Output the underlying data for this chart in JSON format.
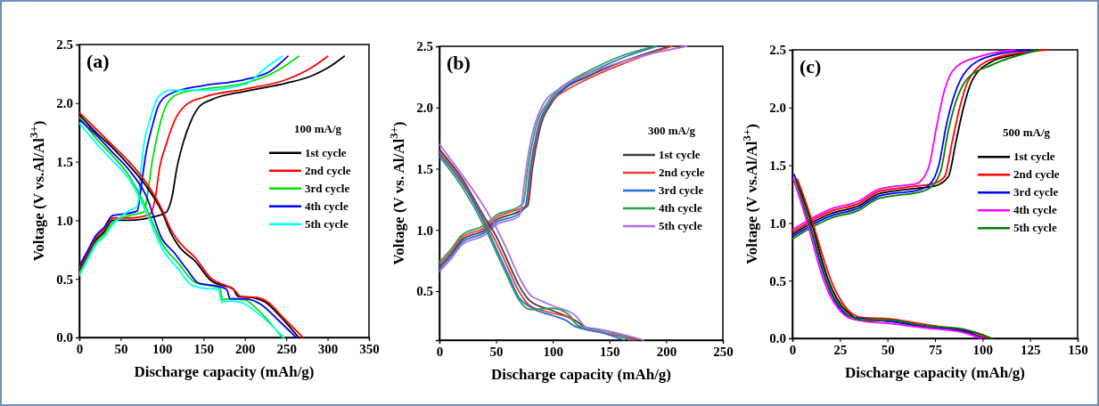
{
  "chart_data": [
    {
      "type": "line",
      "title": "(a)",
      "xlabel": "Discharge capacity (mAh/g)",
      "ylabel": "Voltage (V vs.Al/Al$^{3+}$)",
      "legend_title": "100 mA/g",
      "legend": "right",
      "xlim": [
        0,
        350
      ],
      "ylim": [
        0,
        2.5
      ],
      "xticks": [
        0,
        50,
        100,
        150,
        200,
        250,
        300,
        350
      ],
      "yticks": [
        {
          "value": 0,
          "label": "0.0"
        },
        {
          "value": 0.5,
          "label": "0.5"
        },
        {
          "value": 1,
          "label": "1.0"
        },
        {
          "value": 1.5,
          "label": "1.5"
        },
        {
          "value": 2,
          "label": "2.0"
        },
        {
          "value": 2.5,
          "label": "2.5"
        }
      ],
      "series": [
        {
          "name": "1st cycle",
          "color": "#000000",
          "x": [
            0,
            10,
            20,
            30,
            40,
            60,
            90,
            105,
            112,
            118,
            125,
            135,
            145,
            160,
            200,
            250,
            280,
            300,
            320
          ],
          "values": [
            0.57,
            0.7,
            0.83,
            0.9,
            1.0,
            1.0,
            1.03,
            1.07,
            1.2,
            1.45,
            1.65,
            1.85,
            1.97,
            2.03,
            2.1,
            2.17,
            2.23,
            2.3,
            2.4
          ]
        },
        {
          "name": "2nd cycle",
          "color": "#ff0000",
          "x": [
            0,
            10,
            20,
            30,
            40,
            60,
            85,
            92,
            97,
            105,
            115,
            128,
            150,
            200,
            250,
            280,
            300
          ],
          "values": [
            0.59,
            0.72,
            0.85,
            0.92,
            1.02,
            1.02,
            1.05,
            1.2,
            1.45,
            1.65,
            1.85,
            1.98,
            2.05,
            2.12,
            2.2,
            2.3,
            2.4
          ]
        },
        {
          "name": "3rd cycle",
          "color": "#00e000",
          "x": [
            0,
            10,
            20,
            30,
            40,
            60,
            78,
            83,
            88,
            95,
            105,
            120,
            150,
            200,
            240,
            265
          ],
          "values": [
            0.55,
            0.68,
            0.81,
            0.88,
            0.98,
            1.04,
            1.07,
            1.25,
            1.5,
            1.75,
            1.98,
            2.08,
            2.12,
            2.17,
            2.28,
            2.4
          ]
        },
        {
          "name": "4th cycle",
          "color": "#0000ff",
          "x": [
            0,
            10,
            20,
            30,
            40,
            60,
            70,
            75,
            80,
            88,
            97,
            110,
            150,
            200,
            230,
            252
          ],
          "values": [
            0.61,
            0.74,
            0.87,
            0.94,
            1.04,
            1.06,
            1.08,
            1.3,
            1.55,
            1.8,
            2.0,
            2.08,
            2.15,
            2.2,
            2.27,
            2.4
          ]
        },
        {
          "name": "5th cycle",
          "color": "#00ffff",
          "x": [
            0,
            10,
            20,
            30,
            40,
            60,
            70,
            74,
            78,
            85,
            95,
            110,
            150,
            200,
            225,
            245
          ],
          "values": [
            0.53,
            0.66,
            0.79,
            0.86,
            0.96,
            1.08,
            1.12,
            1.4,
            1.65,
            1.85,
            2.05,
            2.11,
            2.11,
            2.16,
            2.3,
            2.4
          ]
        },
        {
          "color": "#000000",
          "x": [
            0,
            20,
            40,
            60,
            80,
            100,
            110,
            120,
            140,
            160,
            175,
            185,
            192,
            210,
            225,
            240,
            265
          ],
          "values": [
            1.9,
            1.75,
            1.62,
            1.47,
            1.3,
            1.07,
            0.9,
            0.78,
            0.65,
            0.48,
            0.44,
            0.42,
            0.35,
            0.34,
            0.3,
            0.2,
            0.0
          ]
        },
        {
          "color": "#ff0000",
          "x": [
            0,
            20,
            40,
            60,
            80,
            100,
            110,
            120,
            140,
            160,
            178,
            188,
            195,
            215,
            228,
            245,
            270
          ],
          "values": [
            1.92,
            1.78,
            1.64,
            1.5,
            1.33,
            1.09,
            0.93,
            0.82,
            0.68,
            0.5,
            0.44,
            0.4,
            0.35,
            0.34,
            0.3,
            0.18,
            0.0
          ]
        },
        {
          "color": "#00e000",
          "x": [
            0,
            20,
            40,
            60,
            80,
            100,
            120,
            140,
            160,
            170,
            173,
            180,
            200,
            215,
            245
          ],
          "values": [
            1.88,
            1.7,
            1.55,
            1.38,
            1.12,
            0.8,
            0.63,
            0.47,
            0.44,
            0.42,
            0.32,
            0.33,
            0.32,
            0.24,
            0.0
          ]
        },
        {
          "color": "#0000ff",
          "x": [
            0,
            20,
            40,
            60,
            80,
            100,
            115,
            130,
            145,
            165,
            178,
            182,
            200,
            220,
            240,
            262
          ],
          "values": [
            1.86,
            1.73,
            1.58,
            1.43,
            1.22,
            0.84,
            0.72,
            0.58,
            0.46,
            0.44,
            0.41,
            0.33,
            0.33,
            0.28,
            0.15,
            0.0
          ]
        },
        {
          "color": "#00ffff",
          "x": [
            0,
            20,
            40,
            60,
            80,
            100,
            120,
            135,
            150,
            168,
            172,
            180,
            195,
            215,
            247
          ],
          "values": [
            1.83,
            1.66,
            1.51,
            1.35,
            1.08,
            0.76,
            0.58,
            0.45,
            0.42,
            0.41,
            0.3,
            0.31,
            0.3,
            0.21,
            0.0
          ]
        }
      ]
    },
    {
      "type": "line",
      "title": "(b)",
      "xlabel": "Discharge capacity (mAh/g)",
      "ylabel": "Voltage (V vs. Al/Al$^{3+}$)",
      "legend_title": "300 mA/g",
      "legend": "right",
      "xlim": [
        0,
        250
      ],
      "ylim": [
        0.1,
        2.5
      ],
      "xticks": [
        0,
        50,
        100,
        150,
        200,
        250
      ],
      "yticks": [
        {
          "value": 0.5,
          "label": "0.5"
        },
        {
          "value": 1,
          "label": "1.0"
        },
        {
          "value": 1.5,
          "label": "1.5"
        },
        {
          "value": 2,
          "label": "2.0"
        },
        {
          "value": 2.5,
          "label": "2.5"
        }
      ],
      "series": [
        {
          "name": "1st cycle",
          "color": "#404040",
          "x": [
            0,
            10,
            20,
            40,
            50,
            70,
            78,
            82,
            88,
            100,
            110,
            130,
            160,
            203
          ],
          "values": [
            0.7,
            0.8,
            0.92,
            1.0,
            1.08,
            1.15,
            1.2,
            1.5,
            1.8,
            2.05,
            2.15,
            2.25,
            2.37,
            2.5
          ]
        },
        {
          "name": "2nd cycle",
          "color": "#f03c3c",
          "x": [
            0,
            10,
            20,
            40,
            50,
            70,
            77,
            81,
            87,
            99,
            110,
            130,
            160,
            205
          ],
          "values": [
            0.72,
            0.82,
            0.94,
            1.02,
            1.1,
            1.17,
            1.2,
            1.5,
            1.8,
            2.05,
            2.13,
            2.23,
            2.35,
            2.5
          ]
        },
        {
          "name": "3rd cycle",
          "color": "#1e6fdc",
          "x": [
            0,
            10,
            20,
            40,
            50,
            70,
            76,
            80,
            86,
            98,
            110,
            130,
            160,
            192
          ],
          "values": [
            0.68,
            0.78,
            0.9,
            0.98,
            1.06,
            1.13,
            1.2,
            1.5,
            1.8,
            2.05,
            2.16,
            2.27,
            2.4,
            2.5
          ]
        },
        {
          "name": "4th cycle",
          "color": "#2ca05a",
          "x": [
            0,
            10,
            20,
            40,
            50,
            70,
            74,
            78,
            84,
            96,
            110,
            130,
            160,
            190
          ],
          "values": [
            0.74,
            0.84,
            0.96,
            1.04,
            1.12,
            1.19,
            1.22,
            1.5,
            1.8,
            2.05,
            2.18,
            2.29,
            2.42,
            2.5
          ]
        },
        {
          "name": "5th cycle",
          "color": "#b070e0",
          "x": [
            0,
            10,
            20,
            40,
            50,
            70,
            72,
            75,
            80,
            90,
            105,
            130,
            170,
            218
          ],
          "values": [
            0.66,
            0.76,
            0.88,
            0.96,
            1.04,
            1.11,
            1.17,
            1.4,
            1.7,
            2.0,
            2.15,
            2.27,
            2.4,
            2.5
          ]
        },
        {
          "color": "#404040",
          "x": [
            0,
            20,
            40,
            50,
            60,
            70,
            80,
            100,
            120,
            130,
            150,
            175
          ],
          "values": [
            1.66,
            1.42,
            1.1,
            0.95,
            0.75,
            0.55,
            0.42,
            0.34,
            0.26,
            0.2,
            0.17,
            0.1
          ]
        },
        {
          "color": "#f03c3c",
          "x": [
            0,
            20,
            40,
            50,
            60,
            70,
            80,
            100,
            115,
            125,
            150,
            172
          ],
          "values": [
            1.64,
            1.4,
            1.07,
            0.9,
            0.7,
            0.5,
            0.38,
            0.32,
            0.28,
            0.2,
            0.15,
            0.1
          ]
        },
        {
          "color": "#1e6fdc",
          "x": [
            0,
            20,
            40,
            50,
            60,
            70,
            80,
            100,
            112,
            120,
            140,
            163
          ],
          "values": [
            1.62,
            1.38,
            1.05,
            0.85,
            0.65,
            0.45,
            0.37,
            0.3,
            0.26,
            0.21,
            0.17,
            0.1
          ]
        },
        {
          "color": "#2ca05a",
          "x": [
            0,
            20,
            40,
            50,
            60,
            70,
            80,
            100,
            115,
            122,
            145,
            168
          ],
          "values": [
            1.6,
            1.35,
            1.02,
            0.82,
            0.62,
            0.43,
            0.35,
            0.36,
            0.3,
            0.22,
            0.18,
            0.1
          ]
        },
        {
          "color": "#b070e0",
          "x": [
            0,
            20,
            40,
            50,
            60,
            70,
            80,
            90,
            100,
            120,
            130,
            155,
            180
          ],
          "values": [
            1.7,
            1.45,
            1.18,
            1.02,
            0.83,
            0.62,
            0.47,
            0.42,
            0.38,
            0.3,
            0.2,
            0.16,
            0.1
          ]
        }
      ]
    },
    {
      "type": "line",
      "title": "(c)",
      "xlabel": "Discharge capacity (mAh/g)",
      "ylabel": "Voltage (V vs.Al/Al$^{3+}$)",
      "legend_title": "500 mA/g",
      "legend": "right",
      "xlim": [
        0,
        150
      ],
      "ylim": [
        0,
        2.5
      ],
      "xticks": [
        0,
        25,
        50,
        75,
        100,
        125,
        150
      ],
      "yticks": [
        {
          "value": 0,
          "label": "0.0"
        },
        {
          "value": 0.5,
          "label": "0.5"
        },
        {
          "value": 1,
          "label": "1.0"
        },
        {
          "value": 1.5,
          "label": "1.5"
        },
        {
          "value": 2,
          "label": "2.0"
        },
        {
          "value": 2.5,
          "label": "2.5"
        }
      ],
      "series": [
        {
          "name": "1st cycle",
          "color": "#000000",
          "x": [
            0,
            10,
            20,
            35,
            45,
            55,
            65,
            75,
            82,
            86,
            90,
            95,
            105,
            115,
            130
          ],
          "values": [
            0.9,
            1.0,
            1.08,
            1.15,
            1.25,
            1.28,
            1.3,
            1.32,
            1.4,
            1.7,
            2.0,
            2.25,
            2.4,
            2.45,
            2.5
          ]
        },
        {
          "name": "2nd cycle",
          "color": "#ff0000",
          "x": [
            0,
            10,
            20,
            35,
            45,
            55,
            65,
            74,
            80,
            84,
            88,
            93,
            105,
            134
          ],
          "values": [
            0.92,
            1.02,
            1.1,
            1.17,
            1.27,
            1.3,
            1.32,
            1.34,
            1.4,
            1.7,
            2.0,
            2.25,
            2.42,
            2.5
          ]
        },
        {
          "name": "3rd cycle",
          "color": "#0000ff",
          "x": [
            0,
            10,
            20,
            35,
            45,
            55,
            65,
            72,
            77,
            81,
            85,
            92,
            105,
            125
          ],
          "values": [
            0.88,
            0.98,
            1.06,
            1.13,
            1.23,
            1.26,
            1.28,
            1.33,
            1.5,
            1.85,
            2.1,
            2.33,
            2.45,
            2.5
          ]
        },
        {
          "name": "4th cycle",
          "color": "#ff00ff",
          "x": [
            0,
            10,
            20,
            35,
            45,
            55,
            65,
            68,
            72,
            76,
            80,
            86,
            100,
            117
          ],
          "values": [
            0.94,
            1.04,
            1.12,
            1.19,
            1.29,
            1.32,
            1.34,
            1.37,
            1.5,
            1.85,
            2.15,
            2.35,
            2.45,
            2.5
          ]
        },
        {
          "name": "5th cycle",
          "color": "#008000",
          "x": [
            0,
            10,
            20,
            35,
            45,
            55,
            65,
            72,
            78,
            82,
            86,
            92,
            105,
            130
          ],
          "values": [
            0.86,
            0.96,
            1.04,
            1.11,
            1.21,
            1.24,
            1.26,
            1.3,
            1.45,
            1.8,
            2.05,
            2.25,
            2.37,
            2.5
          ]
        },
        {
          "color": "#000000",
          "x": [
            2,
            6,
            11,
            16,
            21,
            26,
            31,
            35,
            50,
            70,
            90,
            100,
            104
          ],
          "values": [
            1.38,
            1.2,
            0.95,
            0.65,
            0.42,
            0.28,
            0.2,
            0.16,
            0.15,
            0.1,
            0.07,
            0.03,
            0.0
          ]
        },
        {
          "color": "#ff0000",
          "x": [
            2.6,
            6.6,
            11.6,
            16.6,
            21.6,
            26.6,
            31.6,
            37,
            50,
            70,
            90,
            103
          ],
          "values": [
            1.38,
            1.2,
            0.95,
            0.68,
            0.45,
            0.3,
            0.21,
            0.18,
            0.17,
            0.12,
            0.06,
            0.0
          ]
        },
        {
          "color": "#0000ff",
          "x": [
            1,
            5,
            10,
            15,
            20,
            25,
            30,
            37,
            50,
            70,
            90,
            100
          ],
          "values": [
            1.42,
            1.2,
            0.93,
            0.63,
            0.4,
            0.26,
            0.19,
            0.17,
            0.15,
            0.1,
            0.06,
            0.0
          ]
        },
        {
          "color": "#ff00ff",
          "x": [
            0.5,
            4.5,
            9.5,
            14.5,
            19.5,
            24.5,
            29.5,
            37,
            50,
            70,
            90,
            99
          ],
          "values": [
            1.38,
            1.18,
            0.9,
            0.6,
            0.38,
            0.25,
            0.18,
            0.15,
            0.13,
            0.09,
            0.05,
            0.0
          ]
        },
        {
          "color": "#008000",
          "x": [
            1.5,
            5.5,
            10.5,
            15.5,
            20.5,
            25.5,
            30.5,
            37,
            50,
            70,
            90,
            105
          ],
          "values": [
            1.38,
            1.18,
            0.92,
            0.63,
            0.4,
            0.27,
            0.19,
            0.16,
            0.16,
            0.11,
            0.08,
            0.0
          ]
        }
      ]
    }
  ]
}
